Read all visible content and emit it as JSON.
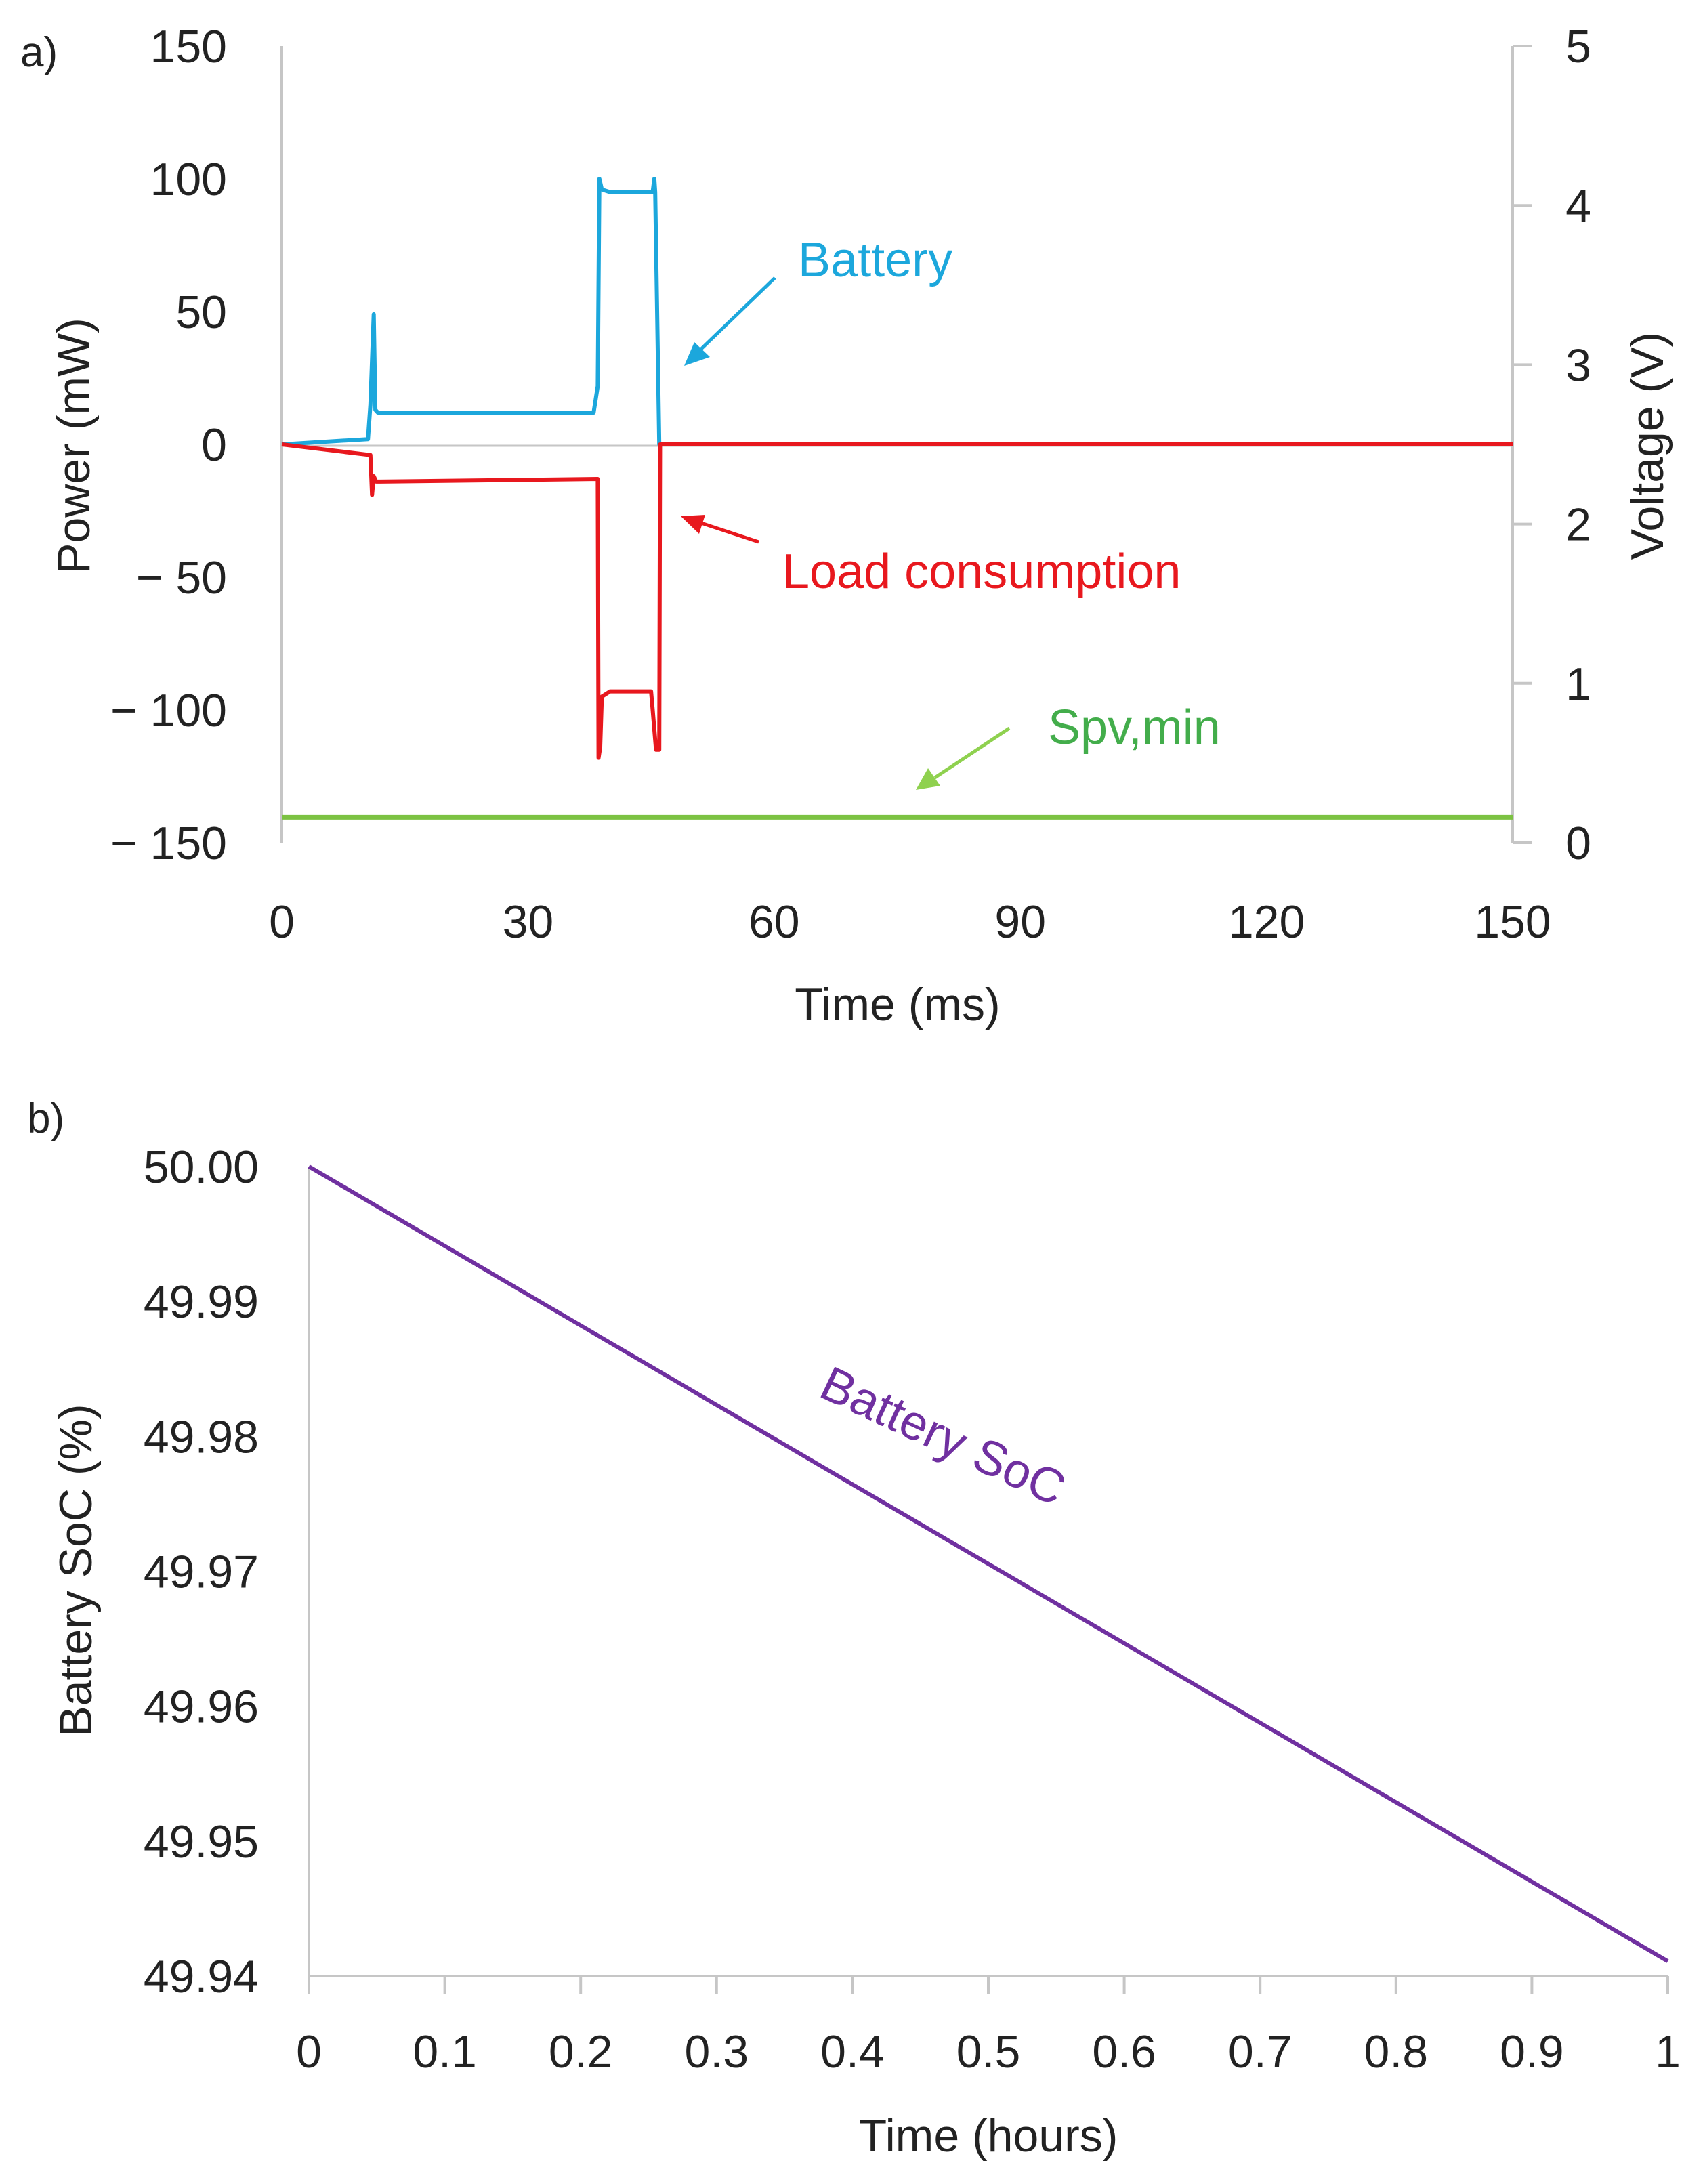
{
  "chart_data": [
    {
      "panel_label": "a)",
      "type": "line",
      "xlabel": "Time (ms)",
      "ylabel": "Power (mW)",
      "y2label": "Voltage (V)",
      "xlim": [
        0,
        150
      ],
      "ylim": [
        -150,
        150
      ],
      "y2lim": [
        0,
        5
      ],
      "x_ticks": [
        "0",
        "30",
        "60",
        "90",
        "120",
        "150"
      ],
      "y_ticks": [
        "150",
        "100",
        "50",
        "0",
        "− 50",
        "− 100",
        "− 150"
      ],
      "y2_ticks": [
        "5",
        "4",
        "3",
        "2",
        "1",
        "0"
      ],
      "series": [
        {
          "name": "Battery",
          "axis": "left",
          "color": "#1ca7dc",
          "x": [
            0,
            10.5,
            10.8,
            11.2,
            11.4,
            11.7,
            12.0,
            38.0,
            38.5,
            38.7,
            39.0,
            40.0,
            45.2,
            45.4,
            45.5,
            46.0,
            150
          ],
          "y": [
            0,
            2,
            15,
            49,
            13,
            12,
            12,
            12,
            22,
            100,
            96,
            95,
            95,
            100,
            95,
            0,
            0
          ]
        },
        {
          "name": "Load consumption",
          "axis": "left",
          "color": "#e8181e",
          "x": [
            0,
            10.8,
            11.0,
            11.2,
            11.5,
            12.0,
            38.5,
            38.6,
            38.8,
            39.0,
            40.0,
            45.0,
            45.2,
            45.6,
            46.0,
            46.1,
            150
          ],
          "y": [
            0,
            -4,
            -19,
            -12,
            -14,
            -14,
            -13,
            -118,
            -114,
            -95,
            -93,
            -93,
            -100,
            -115,
            -115,
            0,
            0
          ]
        },
        {
          "name": "Spv,min",
          "axis": "right",
          "color": "#7cc242",
          "x": [
            0,
            150
          ],
          "y": [
            0.16,
            0.16
          ]
        }
      ],
      "annotations": [
        {
          "text": "Battery",
          "color": "#1ca7dc"
        },
        {
          "text": "Load consumption",
          "color": "#e8181e"
        },
        {
          "text": "Spv,min",
          "color": "#43ad4b"
        }
      ]
    },
    {
      "panel_label": "b)",
      "type": "line",
      "xlabel": "Time (hours)",
      "ylabel": "Battery SoC (%)",
      "xlim": [
        0,
        1
      ],
      "ylim": [
        49.94,
        50.0
      ],
      "x_ticks": [
        "0",
        "0.1",
        "0.2",
        "0.3",
        "0.4",
        "0.5",
        "0.6",
        "0.7",
        "0.8",
        "0.9",
        "1"
      ],
      "y_ticks": [
        "50.00",
        "49.99",
        "49.98",
        "49.97",
        "49.96",
        "49.95",
        "49.94"
      ],
      "series": [
        {
          "name": "Battery SoC",
          "color": "#7030a0",
          "x": [
            0,
            1
          ],
          "y": [
            50.0,
            49.9411
          ]
        }
      ],
      "annotations": [
        {
          "text": "Battery SoC",
          "color": "#7030a0"
        }
      ]
    }
  ]
}
